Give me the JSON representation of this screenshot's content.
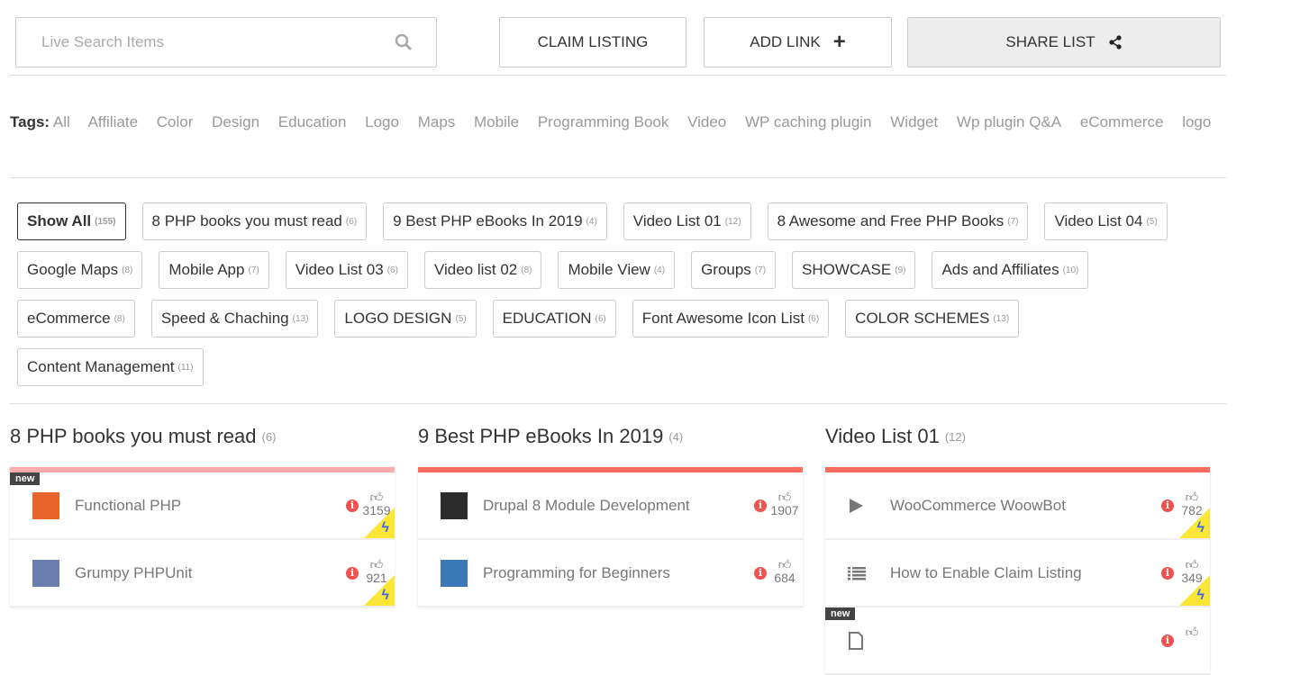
{
  "search": {
    "placeholder": "Live Search Items"
  },
  "toolbar": {
    "claim": "CLAIM LISTING",
    "add": "ADD LINK",
    "share": "SHARE LIST"
  },
  "tags": {
    "label": "Tags:",
    "items": [
      "All",
      "Affiliate",
      "Color",
      "Design",
      "Education",
      "Logo",
      "Maps",
      "Mobile",
      "Programming Book",
      "Video",
      "WP caching plugin",
      "Widget",
      "Wp plugin Q&A",
      "eCommerce",
      "logo"
    ]
  },
  "filters": [
    [
      {
        "label": "Show All",
        "count": "(155)",
        "active": true
      },
      {
        "label": "8 PHP books you must read",
        "count": "(6)"
      },
      {
        "label": "9 Best PHP eBooks In 2019",
        "count": "(4)"
      },
      {
        "label": "Video List 01",
        "count": "(12)"
      },
      {
        "label": "8 Awesome and Free PHP Books",
        "count": "(7)"
      },
      {
        "label": "Video List 04",
        "count": "(5)"
      }
    ],
    [
      {
        "label": "Google Maps",
        "count": "(8)"
      },
      {
        "label": "Mobile App",
        "count": "(7)"
      },
      {
        "label": "Video List 03",
        "count": "(6)"
      },
      {
        "label": "Video list 02",
        "count": "(8)"
      },
      {
        "label": "Mobile View",
        "count": "(4)"
      },
      {
        "label": "Groups",
        "count": "(7)"
      },
      {
        "label": "SHOWCASE",
        "count": "(9)"
      },
      {
        "label": "Ads and Affiliates",
        "count": "(10)"
      }
    ],
    [
      {
        "label": "eCommerce",
        "count": "(8)"
      },
      {
        "label": "Speed & Chaching",
        "count": "(13)"
      },
      {
        "label": "LOGO DESIGN",
        "count": "(5)"
      },
      {
        "label": "EDUCATION",
        "count": "(6)"
      },
      {
        "label": "Font Awesome Icon List",
        "count": "(6)"
      },
      {
        "label": "COLOR SCHEMES",
        "count": "(13)"
      }
    ],
    [
      {
        "label": "Content Management",
        "count": "(11)"
      }
    ]
  ],
  "lists": [
    {
      "title": "8 PHP books you must read",
      "count": "(6)",
      "accent": "#fdaaaa",
      "items": [
        {
          "title": "Functional PHP",
          "votes": "3159",
          "new": "new",
          "thumb": "#e8642a",
          "featured": true
        },
        {
          "title": "Grumpy PHPUnit",
          "votes": "921",
          "thumb": "#6a7fb0",
          "featured": true
        }
      ]
    },
    {
      "title": "9 Best PHP eBooks In 2019",
      "count": "(4)",
      "accent": "#f96b5e",
      "items": [
        {
          "title": "Drupal 8 Module Development",
          "votes": "1907",
          "thumb": "#2b2b2b"
        },
        {
          "title": "Programming for Beginners",
          "votes": "684",
          "thumb": "#3a78b8"
        }
      ]
    },
    {
      "title": "Video List 01",
      "count": "(12)",
      "accent": "#f96b5e",
      "items": [
        {
          "title": "WooCommerce WoowBot",
          "votes": "782",
          "icon": "play-icon",
          "featured": true
        },
        {
          "title": "How to Enable Claim Listing",
          "votes": "349",
          "icon": "list-icon",
          "featured": true
        },
        {
          "title": "",
          "votes": "",
          "new": "new",
          "icon": "file-icon"
        }
      ]
    }
  ]
}
